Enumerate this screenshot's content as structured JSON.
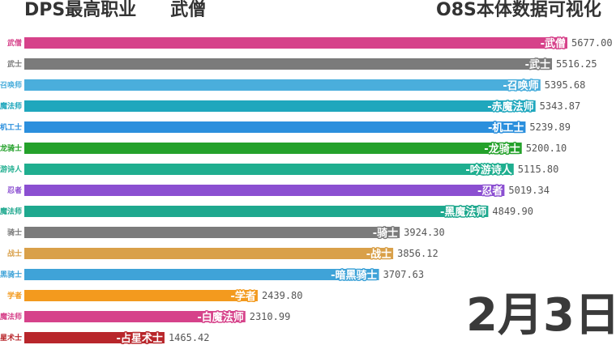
{
  "header": {
    "title": "DPS最高职业",
    "leader": "武僧",
    "subtitle": "O8S本体数据可视化"
  },
  "date": "2月3日",
  "chart_data": {
    "type": "bar",
    "orientation": "horizontal",
    "title": "DPS最高职业",
    "categories": [
      "武僧",
      "武士",
      "召唤师",
      "赤魔法师",
      "机工士",
      "龙骑士",
      "吟游诗人",
      "忍者",
      "黑魔法师",
      "骑士",
      "战士",
      "暗黑骑士",
      "学者",
      "白魔法师",
      "占星术士"
    ],
    "bar_labels": [
      "-武僧",
      "-武士",
      "-召唤师",
      "-赤魔法师",
      "-机工士",
      "-龙骑士",
      "-吟游诗人",
      "-忍者",
      "-黑魔法师",
      "-骑士",
      "-战士",
      "-暗黑骑士",
      "-学者",
      "-白魔法师",
      "-占星术士"
    ],
    "values": [
      5677.0,
      5516.25,
      5395.68,
      5343.87,
      5239.89,
      5200.1,
      5115.8,
      5019.34,
      4849.9,
      3924.3,
      3856.12,
      3707.63,
      2439.8,
      2310.99,
      1465.42
    ],
    "value_labels": [
      "5677.00",
      "5516.25",
      "5395.68",
      "5343.87",
      "5239.89",
      "5200.10",
      "5115.80",
      "5019.34",
      "4849.90",
      "3924.30",
      "3856.12",
      "3707.63",
      "2439.80",
      "2310.99",
      "1465.42"
    ],
    "colors": [
      "#d6428a",
      "#7b7b7b",
      "#4aaedc",
      "#1fa7bd",
      "#2b8fdd",
      "#24a12b",
      "#1fae8f",
      "#8b4fd1",
      "#1ea88e",
      "#7b7b7b",
      "#d9a049",
      "#3fa3d8",
      "#f39a1e",
      "#d6428a",
      "#b8262b"
    ],
    "xlim": [
      0,
      5677.0
    ],
    "grid": false,
    "legend": "none"
  }
}
